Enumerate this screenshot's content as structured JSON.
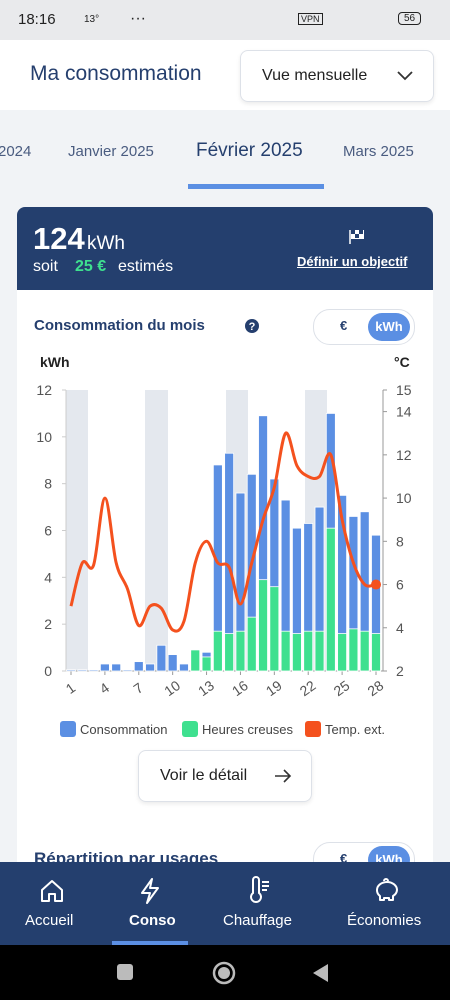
{
  "status_bar": {
    "time": "18:16",
    "temp": "13°",
    "dots": "···",
    "vpn": "VPN",
    "battery": "56"
  },
  "header": {
    "title": "Ma consommation",
    "dropdown": "Vue mensuelle"
  },
  "tabs": [
    "2024",
    "Janvier 2025",
    "Février 2025",
    "Mars 2025"
  ],
  "summary": {
    "value": "124",
    "unit": "kWh",
    "prefix": "soit",
    "amount": "25 €",
    "suffix": "estimés",
    "link": "Définir un objectif"
  },
  "section": {
    "title": "Consommation du mois",
    "toggle": [
      "€",
      "kWh"
    ]
  },
  "chart_data": {
    "type": "bar",
    "y_label": "kWh",
    "y2_label": "°C",
    "categories": [
      "1",
      null,
      null,
      "4",
      null,
      null,
      "7",
      null,
      null,
      "10",
      null,
      null,
      "13",
      null,
      null,
      "16",
      null,
      null,
      "19",
      null,
      null,
      "22",
      null,
      null,
      "25",
      null,
      null,
      "28"
    ],
    "series": [
      {
        "name": "Consommation",
        "color": "#5b8fe3",
        "values": [
          0.05,
          0.05,
          0.05,
          0.3,
          0.3,
          0.05,
          0.4,
          0.3,
          1.1,
          0.7,
          0.3,
          0.9,
          0.8,
          8.8,
          9.3,
          7.6,
          8.4,
          10.9,
          8.2,
          7.3,
          6.1,
          6.3,
          7.0,
          11.0,
          7.5,
          6.6,
          6.8,
          5.8
        ]
      },
      {
        "name": "Heures creuses",
        "color": "#3ee08f",
        "values": [
          0,
          0,
          0,
          0,
          0,
          0,
          0,
          0,
          0,
          0,
          0,
          0.9,
          0.6,
          1.7,
          1.6,
          1.7,
          2.3,
          3.9,
          3.6,
          1.7,
          1.6,
          1.7,
          1.7,
          6.1,
          1.6,
          1.8,
          1.7,
          1.6
        ]
      },
      {
        "name": "Temp. ext.",
        "color": "#f4511e",
        "type": "line",
        "axis": "y2",
        "values": [
          5.0,
          7.0,
          6.9,
          10.0,
          7.0,
          5.8,
          4.1,
          5.0,
          4.9,
          3.9,
          4.3,
          7.0,
          8.0,
          7.0,
          6.8,
          5.1,
          7.0,
          9.0,
          10.5,
          13.0,
          11.5,
          11.0,
          11.0,
          12.0,
          9.0,
          7.0,
          6.0,
          6.0
        ]
      }
    ],
    "ylim": [
      0,
      12
    ],
    "yticks": [
      0,
      2,
      4,
      6,
      8,
      10,
      12
    ],
    "y2lim": [
      2,
      15
    ],
    "y2ticks": [
      2,
      4,
      6,
      8,
      10,
      12,
      14,
      15
    ],
    "grid": false
  },
  "detail_button": "Voir le détail",
  "next_section": {
    "title": "Répartition par usages",
    "toggle": [
      "€",
      "kWh"
    ]
  },
  "nav": [
    "Accueil",
    "Conso",
    "Chauffage",
    "Économies"
  ]
}
